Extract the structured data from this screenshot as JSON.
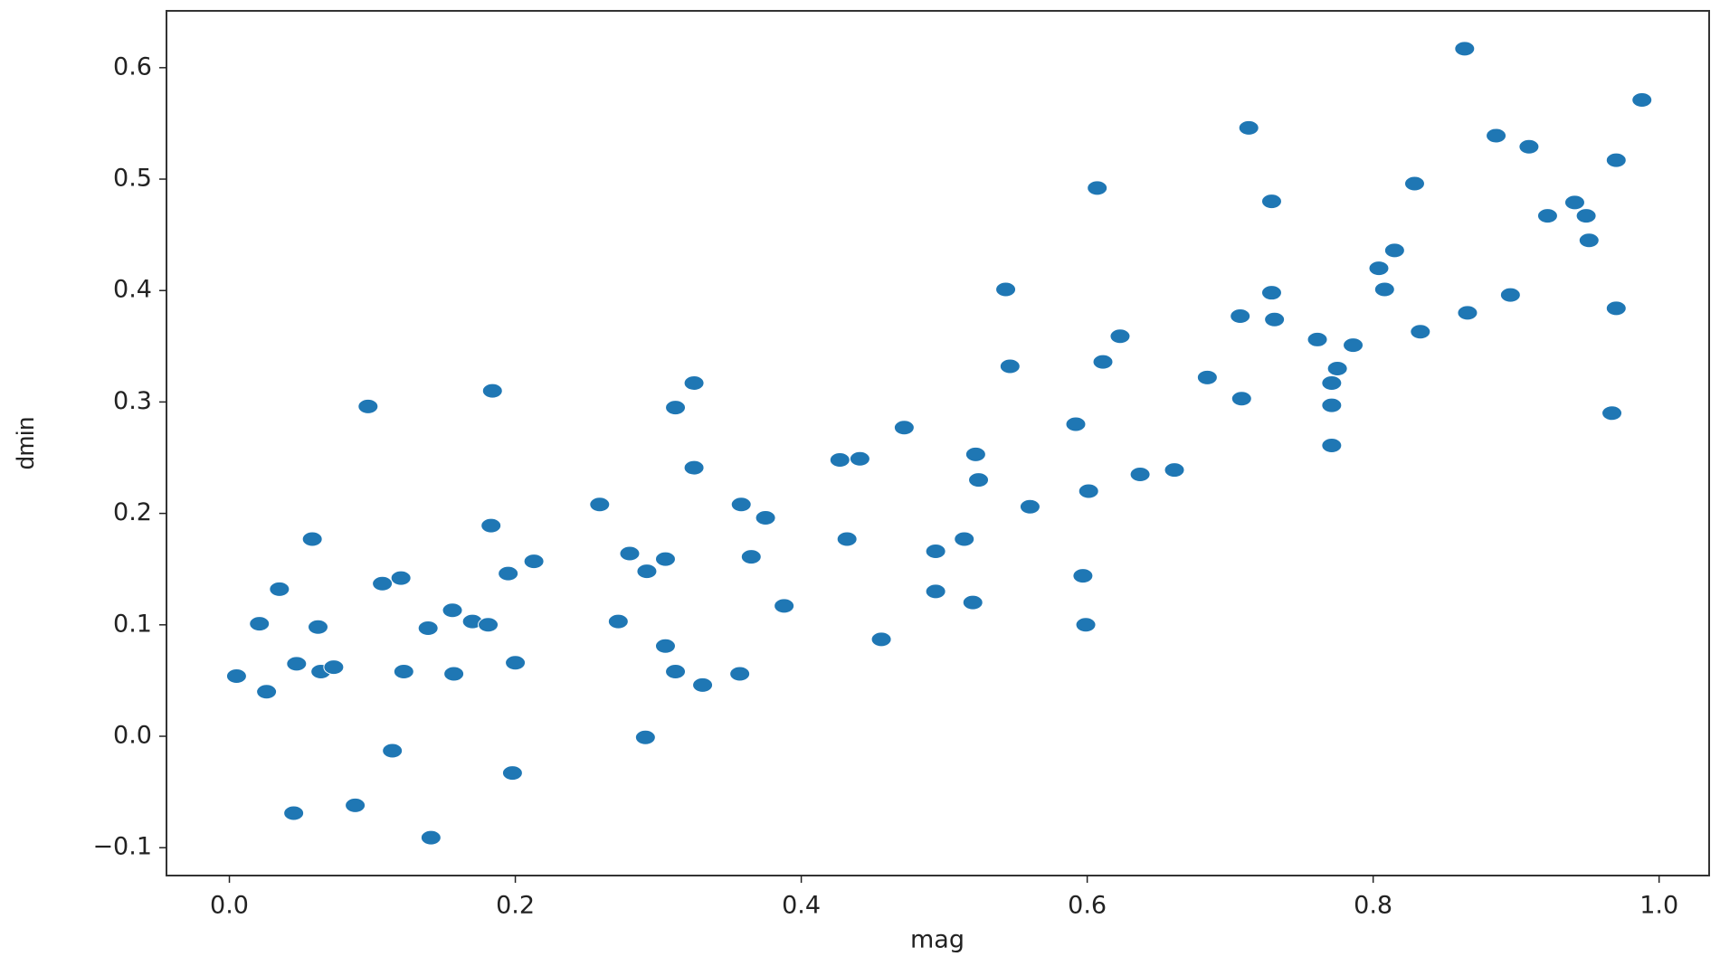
{
  "chart_data": {
    "type": "scatter",
    "x_label": "mag",
    "y_label": "dmin",
    "color": "#1f77b4",
    "x": [
      0.005,
      0.021,
      0.026,
      0.035,
      0.045,
      0.047,
      0.058,
      0.062,
      0.064,
      0.073,
      0.088,
      0.097,
      0.107,
      0.114,
      0.12,
      0.122,
      0.139,
      0.141,
      0.156,
      0.157,
      0.17,
      0.181,
      0.183,
      0.184,
      0.195,
      0.198,
      0.2,
      0.213,
      0.259,
      0.272,
      0.28,
      0.291,
      0.292,
      0.305,
      0.305,
      0.312,
      0.312,
      0.325,
      0.325,
      0.331,
      0.357,
      0.358,
      0.365,
      0.375,
      0.388,
      0.427,
      0.432,
      0.441,
      0.456,
      0.472,
      0.494,
      0.494,
      0.514,
      0.52,
      0.522,
      0.524,
      0.543,
      0.546,
      0.56,
      0.592,
      0.597,
      0.599,
      0.601,
      0.607,
      0.611,
      0.623,
      0.637,
      0.661,
      0.684,
      0.707,
      0.708,
      0.713,
      0.729,
      0.729,
      0.731,
      0.761,
      0.771,
      0.771,
      0.771,
      0.775,
      0.786,
      0.804,
      0.808,
      0.815,
      0.829,
      0.833,
      0.864,
      0.866,
      0.886,
      0.896,
      0.909,
      0.922,
      0.941,
      0.949,
      0.951,
      0.967,
      0.97,
      0.97,
      0.988
    ],
    "values": [
      0.054,
      0.101,
      0.04,
      0.132,
      -0.069,
      0.065,
      0.177,
      0.098,
      0.058,
      0.062,
      -0.062,
      0.296,
      0.137,
      -0.013,
      0.142,
      0.058,
      0.097,
      -0.091,
      0.113,
      0.056,
      0.103,
      0.1,
      0.189,
      0.31,
      0.146,
      -0.033,
      0.066,
      0.157,
      0.208,
      0.103,
      0.164,
      -0.001,
      0.148,
      0.159,
      0.081,
      0.295,
      0.058,
      0.317,
      0.241,
      0.046,
      0.056,
      0.208,
      0.161,
      0.196,
      0.117,
      0.248,
      0.177,
      0.249,
      0.087,
      0.277,
      0.166,
      0.13,
      0.177,
      0.12,
      0.253,
      0.23,
      0.401,
      0.332,
      0.206,
      0.28,
      0.144,
      0.1,
      0.22,
      0.492,
      0.336,
      0.359,
      0.235,
      0.239,
      0.322,
      0.377,
      0.303,
      0.546,
      0.48,
      0.398,
      0.374,
      0.356,
      0.317,
      0.297,
      0.261,
      0.33,
      0.351,
      0.42,
      0.401,
      0.436,
      0.496,
      0.363,
      0.617,
      0.38,
      0.539,
      0.396,
      0.529,
      0.467,
      0.479,
      0.467,
      0.445,
      0.29,
      0.517,
      0.384,
      0.571
    ],
    "xlim": [
      -0.044,
      1.035
    ],
    "ylim": [
      -0.125,
      0.651
    ],
    "xticks": [
      {
        "value": 0,
        "label": "0.0"
      },
      0.2,
      0.4,
      0.6,
      0.8,
      {
        "value": 1,
        "label": "1.0"
      }
    ],
    "yticks": [
      {
        "value": -0.1,
        "label": "−0.1"
      },
      {
        "value": 0,
        "label": "0.0"
      },
      0.1,
      0.2,
      0.3,
      0.4,
      0.5,
      0.6
    ]
  }
}
